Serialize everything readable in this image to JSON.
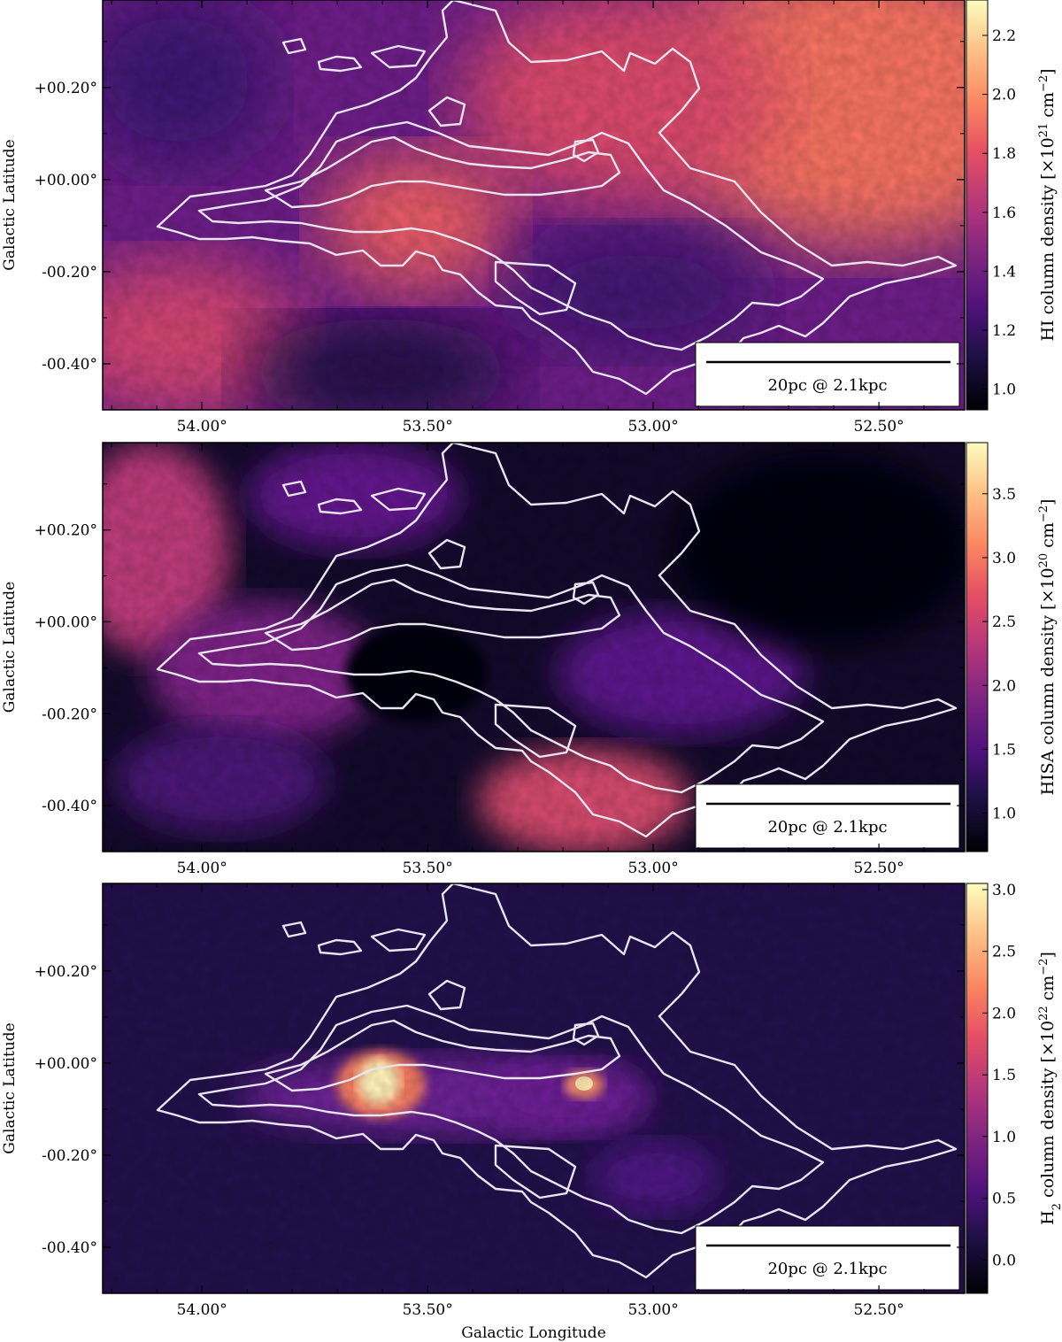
{
  "chart_data": [
    {
      "type": "heatmap",
      "panel": "top",
      "colormap": "magma",
      "x_ticks": [
        "54.00°",
        "53.50°",
        "53.00°",
        "52.50°"
      ],
      "x_tick_values": [
        54.0,
        53.5,
        53.0,
        52.5
      ],
      "y_ticks": [
        "+00.20°",
        "+00.00°",
        "-00.20°",
        "-00.40°"
      ],
      "y_tick_values": [
        0.2,
        0.0,
        -0.2,
        -0.4
      ],
      "xlim": [
        54.22,
        52.31
      ],
      "ylim": [
        -0.5,
        0.39
      ],
      "xlabel": "",
      "ylabel": "Galactic Latitude",
      "colorbar": {
        "label": "HI column density [×10²¹ cm⁻²]",
        "label_main": "HI column density [×10",
        "label_exp": "21",
        "label_unit": " cm",
        "label_unit_exp": "−2",
        "label_close": "]",
        "ticks": [
          "1.0",
          "1.2",
          "1.4",
          "1.6",
          "1.8",
          "2.0",
          "2.2"
        ],
        "tick_values": [
          1.0,
          1.2,
          1.4,
          1.6,
          1.8,
          2.0,
          2.2
        ],
        "range": [
          0.93,
          2.32
        ]
      },
      "scalebar": "20pc @ 2.1kpc",
      "contours": "white contours overlaid"
    },
    {
      "type": "heatmap",
      "panel": "middle",
      "colormap": "magma",
      "x_ticks": [
        "54.00°",
        "53.50°",
        "53.00°",
        "52.50°"
      ],
      "x_tick_values": [
        54.0,
        53.5,
        53.0,
        52.5
      ],
      "y_ticks": [
        "+00.20°",
        "+00.00°",
        "-00.20°",
        "-00.40°"
      ],
      "y_tick_values": [
        0.2,
        0.0,
        -0.2,
        -0.4
      ],
      "xlim": [
        54.22,
        52.31
      ],
      "ylim": [
        -0.5,
        0.39
      ],
      "xlabel": "",
      "ylabel": "Galactic Latitude",
      "colorbar": {
        "label": "HISA column density [×10²⁰ cm⁻²]",
        "label_main": "HISA column density [×10",
        "label_exp": "20",
        "label_unit": " cm",
        "label_unit_exp": "−2",
        "label_close": "]",
        "ticks": [
          "1.0",
          "1.5",
          "2.0",
          "2.5",
          "3.0",
          "3.5"
        ],
        "tick_values": [
          1.0,
          1.5,
          2.0,
          2.5,
          3.0,
          3.5
        ],
        "range": [
          0.7,
          3.9
        ]
      },
      "scalebar": "20pc @ 2.1kpc",
      "contours": "white contours overlaid"
    },
    {
      "type": "heatmap",
      "panel": "bottom",
      "colormap": "magma",
      "x_ticks": [
        "54.00°",
        "53.50°",
        "53.00°",
        "52.50°"
      ],
      "x_tick_values": [
        54.0,
        53.5,
        53.0,
        52.5
      ],
      "y_ticks": [
        "+00.20°",
        "+00.00°",
        "-00.20°",
        "-00.40°"
      ],
      "y_tick_values": [
        0.2,
        0.0,
        -0.2,
        -0.4
      ],
      "xlim": [
        54.22,
        52.31
      ],
      "ylim": [
        -0.5,
        0.39
      ],
      "xlabel": "Galactic Longitude",
      "ylabel": "Galactic Latitude",
      "colorbar": {
        "label": "H₂ column density [×10²² cm⁻²]",
        "label_main": "H",
        "label_sub": "2",
        "label_rest": " column density [×10",
        "label_exp": "22",
        "label_unit": " cm",
        "label_unit_exp": "−2",
        "label_close": "]",
        "ticks": [
          "0.0",
          "0.5",
          "1.0",
          "1.5",
          "2.0",
          "2.5",
          "3.0"
        ],
        "tick_values": [
          0.0,
          0.5,
          1.0,
          1.5,
          2.0,
          2.5,
          3.0
        ],
        "range": [
          -0.27,
          3.05
        ]
      },
      "scalebar": "20pc @ 2.1kpc",
      "contours": "white contours overlaid"
    }
  ]
}
